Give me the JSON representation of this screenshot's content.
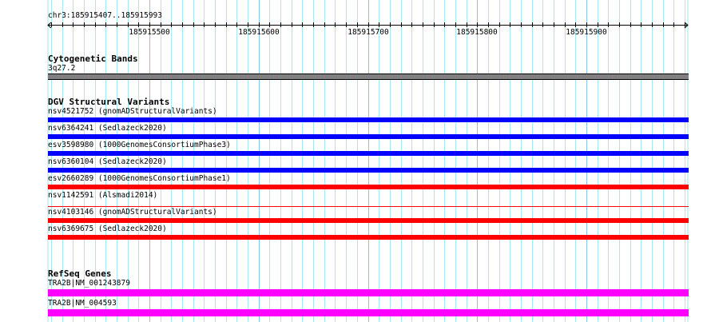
{
  "location": "chr3:185915407..185915993",
  "ruler": {
    "start": 185915407,
    "end": 185915993,
    "tick_labels": [
      "185915500",
      "185915600",
      "185915700",
      "185915800",
      "185915900"
    ]
  },
  "tracks": {
    "cytoband": {
      "title": "Cytogenetic Bands",
      "feature": "3q27.2",
      "color": "#808080"
    },
    "dgv": {
      "title": "DGV Structural Variants",
      "features": [
        {
          "label": "nsv4521752 (gnomADStructuralVariants)",
          "color": "#0000ff",
          "style": "thick"
        },
        {
          "label": "nsv6364241 (Sedlazeck2020)",
          "color": "#0000ff",
          "style": "thick"
        },
        {
          "label": "esv3598980 (1000GenomesConsortiumPhase3)",
          "color": "#0000ff",
          "style": "thick"
        },
        {
          "label": "nsv6360104 (Sedlazeck2020)",
          "color": "#0000ff",
          "style": "thick"
        },
        {
          "label": "esv2660289 (1000GenomesConsortiumPhase1)",
          "color": "#ff0000",
          "style": "thick"
        },
        {
          "label": "nsv1142591 (Alsmadi2014)",
          "color": "#ff0000",
          "style": "thin"
        },
        {
          "label": "nsv4103146 (gnomADStructuralVariants)",
          "color": "#ff0000",
          "style": "thick"
        },
        {
          "label": "nsv6369675 (Sedlazeck2020)",
          "color": "#ff0000",
          "style": "thick"
        }
      ]
    },
    "refseq": {
      "title": "RefSeq Genes",
      "features": [
        {
          "label": "TRA2B|NM_001243879",
          "color": "#ff00ff"
        },
        {
          "label": "TRA2B|NM_004593",
          "color": "#ff00ff"
        }
      ]
    }
  }
}
